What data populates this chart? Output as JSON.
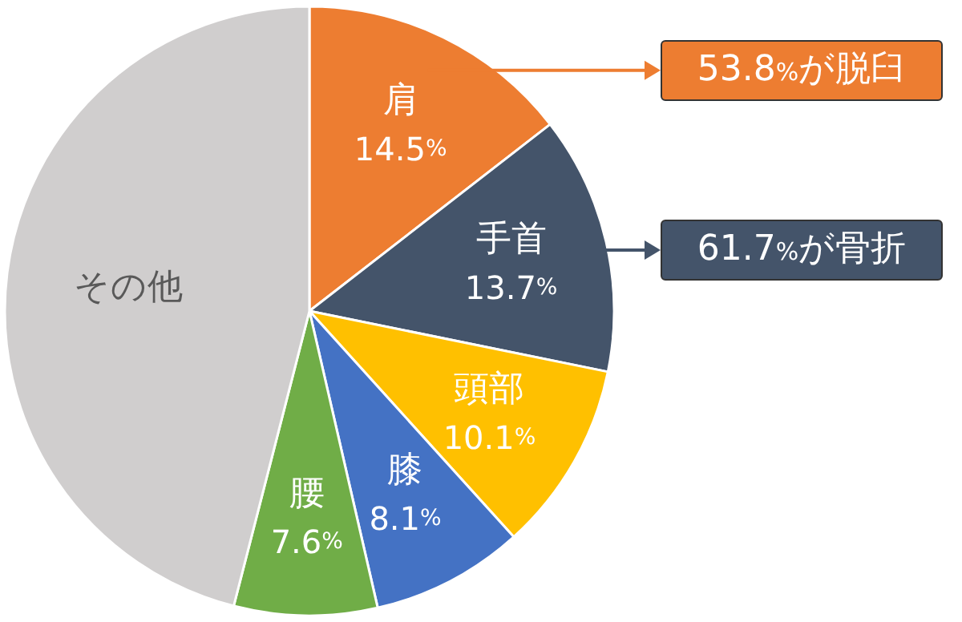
{
  "chart_data": {
    "type": "pie",
    "categories": [
      "肩",
      "手首",
      "頭部",
      "膝",
      "腰",
      "その他"
    ],
    "values": [
      14.5,
      13.7,
      10.1,
      8.1,
      7.6,
      46.0
    ],
    "value_labels": [
      "14.5%",
      "13.7%",
      "10.1%",
      "8.1%",
      "7.6%",
      null
    ],
    "colors": [
      "#ed7d31",
      "#44546a",
      "#ffc000",
      "#4472c4",
      "#70ad47",
      "#d0cece"
    ],
    "annotations": [
      "53.8%が脱臼",
      "61.7%が骨折"
    ]
  }
}
